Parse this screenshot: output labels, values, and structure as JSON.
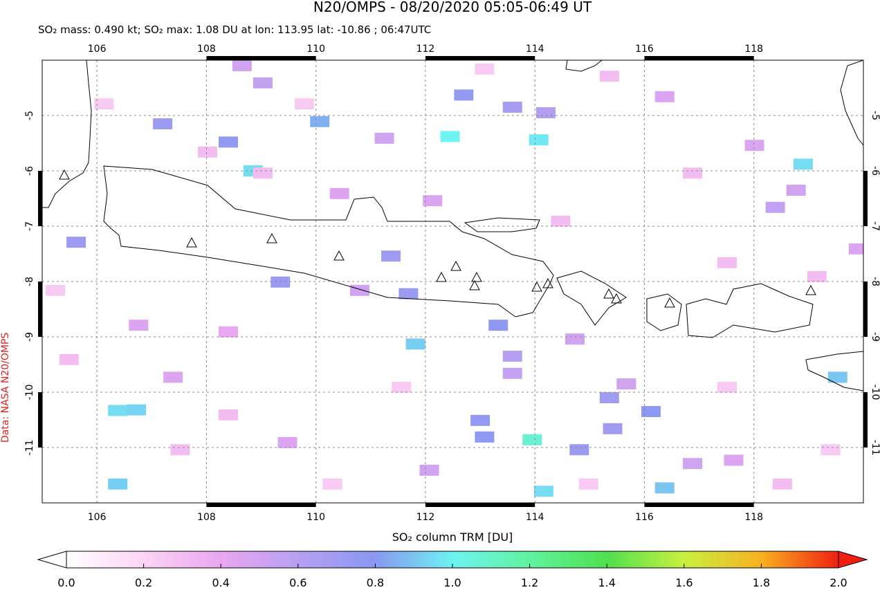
{
  "header": {
    "title": "N20/OMPS - 08/20/2020 05:05-06:49 UT",
    "subtitle": "SO₂ mass: 0.490 kt; SO₂ max: 1.08 DU at lon: 113.95 lat: -10.86 ; 06:47UTC"
  },
  "credit": "Data: NASA N20/OMPS",
  "chart_data": {
    "type": "map-grid",
    "xlim": [
      105,
      120
    ],
    "ylim": [
      -12,
      -4
    ],
    "xticks": [
      106,
      108,
      110,
      112,
      114,
      116,
      118
    ],
    "yticks": [
      -5,
      -6,
      -7,
      -8,
      -9,
      -10,
      -11
    ],
    "grid": true,
    "lon": [
      112.45,
      114.07,
      108.85,
      111.82,
      113.95,
      114.16,
      116.37,
      118.9,
      119.53,
      106.38,
      106.72,
      106.38,
      110.07,
      112.7,
      113.33,
      108.4,
      105.62,
      116.12,
      113.0,
      113.08,
      115.42,
      115.36,
      111.69,
      111.37,
      109.35,
      113.59,
      114.81,
      114.2,
      107.2,
      108.65,
      109.03,
      111.25,
      110.43,
      110.8,
      107.39,
      113.59,
      113.59,
      114.73,
      115.67,
      116.88,
      118.39,
      118.77,
      119.91,
      112.13,
      106.76,
      108.4,
      109.48,
      112.07,
      117.63,
      118.01,
      116.37,
      106.13,
      108.02,
      109.79,
      113.08,
      115.36,
      116.88,
      119.15,
      119.4,
      118.52,
      114.98,
      110.3,
      107.52,
      105.49,
      105.24,
      111.56,
      109.03,
      114.47,
      117.51,
      117.51,
      108.4
    ],
    "lat": [
      -5.38,
      -5.44,
      -6.0,
      -9.13,
      -10.86,
      -11.79,
      -11.73,
      -5.88,
      -9.73,
      -10.33,
      -10.32,
      -11.66,
      -5.11,
      -4.63,
      -8.79,
      -5.48,
      -7.29,
      -10.35,
      -10.51,
      -10.81,
      -10.66,
      -10.1,
      -8.22,
      -7.54,
      -8.01,
      -4.85,
      -11.04,
      -4.95,
      -5.15,
      -4.1,
      -4.41,
      -5.41,
      -6.41,
      -8.16,
      -9.73,
      -9.35,
      -9.66,
      -9.04,
      -9.85,
      -11.29,
      -6.66,
      -6.35,
      -7.41,
      -6.54,
      -8.79,
      -8.91,
      -10.91,
      -11.41,
      -11.23,
      -5.54,
      -4.66,
      -4.79,
      -5.66,
      -4.79,
      -4.16,
      -4.29,
      -6.04,
      -7.91,
      -11.04,
      -11.66,
      -11.66,
      -11.66,
      -11.04,
      -9.41,
      -8.16,
      -9.91,
      -6.04,
      -6.91,
      -7.66,
      -9.91,
      -10.41
    ],
    "values": [
      1.0,
      0.98,
      0.95,
      0.92,
      1.08,
      0.95,
      0.9,
      0.95,
      0.9,
      0.95,
      0.93,
      0.92,
      0.85,
      0.75,
      0.78,
      0.75,
      0.72,
      0.78,
      0.75,
      0.78,
      0.7,
      0.7,
      0.72,
      0.7,
      0.72,
      0.68,
      0.72,
      0.62,
      0.72,
      0.5,
      0.55,
      0.5,
      0.45,
      0.5,
      0.45,
      0.6,
      0.55,
      0.5,
      0.5,
      0.5,
      0.55,
      0.5,
      0.45,
      0.45,
      0.45,
      0.4,
      0.45,
      0.5,
      0.45,
      0.45,
      0.45,
      0.25,
      0.3,
      0.25,
      0.25,
      0.3,
      0.3,
      0.3,
      0.25,
      0.3,
      0.25,
      0.25,
      0.3,
      0.3,
      0.25,
      0.25,
      0.3,
      0.3,
      0.3,
      0.25,
      0.3
    ],
    "colorbar": {
      "label": "SO₂ column TRM [DU]",
      "lim": [
        0,
        2
      ],
      "ticks": [
        {
          "value": 0,
          "label": "0.0"
        },
        0.2,
        0.4,
        0.6,
        0.8,
        {
          "value": 1,
          "label": "1.0"
        },
        1.2,
        1.4,
        1.6,
        1.8,
        {
          "value": 2,
          "label": "2.0"
        }
      ]
    }
  }
}
